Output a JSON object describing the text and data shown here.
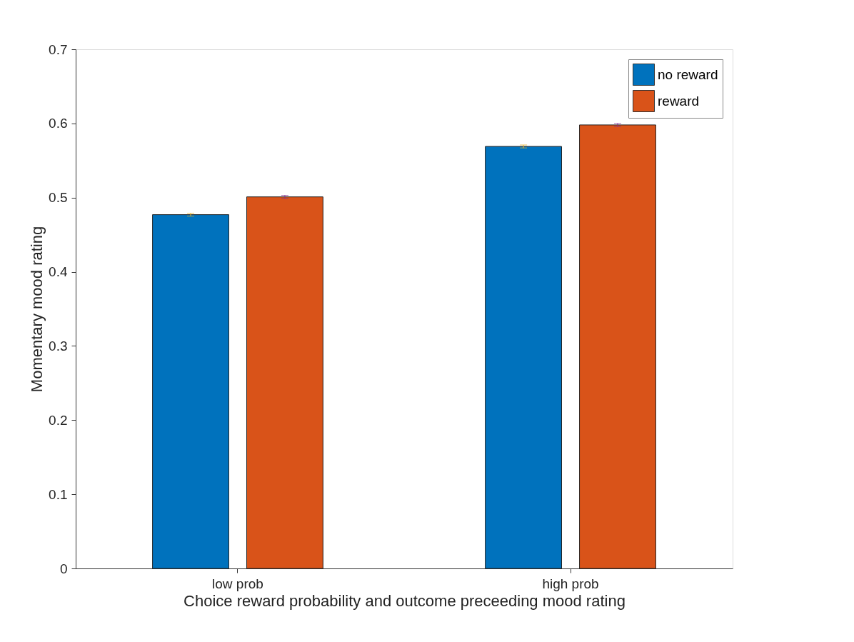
{
  "chart_data": {
    "type": "bar",
    "xlabel": "Choice reward probability and outcome preceeding mood rating",
    "ylabel": "Momentary mood rating",
    "categories": [
      "low prob",
      "high prob"
    ],
    "series": [
      {
        "name": "no reward",
        "color": "#0072bd",
        "values": [
          0.477,
          0.569
        ],
        "errors": [
          0.002,
          0.002
        ]
      },
      {
        "name": "reward",
        "color": "#d95319",
        "values": [
          0.501,
          0.598
        ],
        "errors": [
          0.002,
          0.002
        ]
      }
    ],
    "ylim": [
      0,
      0.7
    ],
    "yticks": [
      0,
      0.1,
      0.2,
      0.3,
      0.4,
      0.5,
      0.6,
      0.7
    ],
    "grid": false,
    "legend": "top right"
  }
}
